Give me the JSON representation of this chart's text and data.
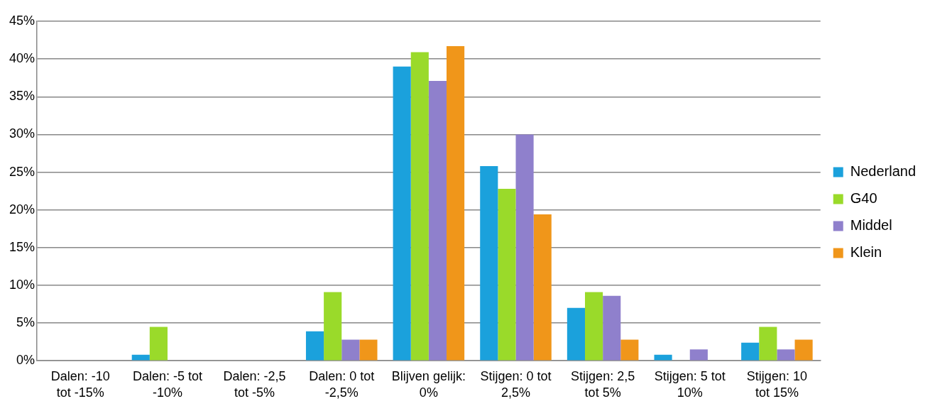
{
  "chart_data": {
    "type": "bar",
    "categories": [
      "Dalen: -10 tot -15%",
      "Dalen: -5 tot -10%",
      "Dalen: -2,5 tot -5%",
      "Dalen: 0 tot -2,5%",
      "Blijven gelijk: 0%",
      "Stijgen: 0 tot 2,5%",
      "Stijgen: 2,5 tot 5%",
      "Stijgen: 5 tot 10%",
      "Stijgen: 10 tot 15%"
    ],
    "series": [
      {
        "name": "Nederland",
        "color": "#1ba1dc",
        "values": [
          0,
          0.8,
          0,
          3.9,
          39.0,
          25.8,
          7.0,
          0.8,
          2.4
        ]
      },
      {
        "name": "G40",
        "color": "#9ada2a",
        "values": [
          0,
          4.5,
          0,
          9.1,
          40.9,
          22.8,
          9.1,
          0,
          4.5
        ]
      },
      {
        "name": "Middel",
        "color": "#8f80cc",
        "values": [
          0,
          0,
          0,
          2.8,
          37.1,
          30.0,
          8.6,
          1.5,
          1.5
        ]
      },
      {
        "name": "Klein",
        "color": "#f0961a",
        "values": [
          0,
          0,
          0,
          2.8,
          41.7,
          19.4,
          2.8,
          0,
          2.8
        ]
      }
    ],
    "ylim": [
      0,
      45
    ],
    "yticks": [
      {
        "value": 0,
        "label": "0%"
      },
      {
        "value": 5,
        "label": "5%"
      },
      {
        "value": 10,
        "label": "10%"
      },
      {
        "value": 15,
        "label": "15%"
      },
      {
        "value": 20,
        "label": "20%"
      },
      {
        "value": 25,
        "label": "25%"
      },
      {
        "value": 30,
        "label": "30%"
      },
      {
        "value": 35,
        "label": "35%"
      },
      {
        "value": 40,
        "label": "40%"
      },
      {
        "value": 45,
        "label": "45%"
      }
    ],
    "grid": "y",
    "legend": "right"
  }
}
